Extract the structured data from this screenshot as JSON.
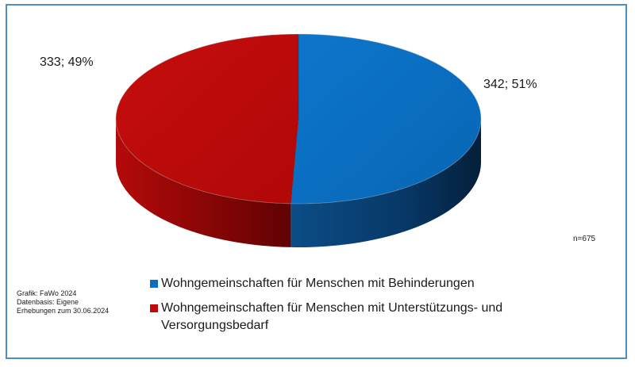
{
  "chart_data": {
    "type": "pie",
    "style": "3d",
    "slices": [
      {
        "label": "Wohngemeinschaften für Menschen mit Behinderungen",
        "value": 342,
        "percent": 51,
        "data_label": "342; 51%",
        "color": "#0a6ec0"
      },
      {
        "label": "Wohngemeinschaften für Menschen mit Unterstützungs- und Versorgungsbedarf",
        "value": 333,
        "percent": 49,
        "data_label": "333; 49%",
        "color": "#c00a0a"
      }
    ],
    "total_note": "n=675",
    "legend_position": "bottom"
  },
  "source": {
    "line1": "Grafik: FaWo 2024",
    "line2": "Datenbasis: Eigene",
    "line3": "Erhebungen zum 30.06.2024"
  },
  "colors": {
    "frame_border": "#4a90c2"
  }
}
